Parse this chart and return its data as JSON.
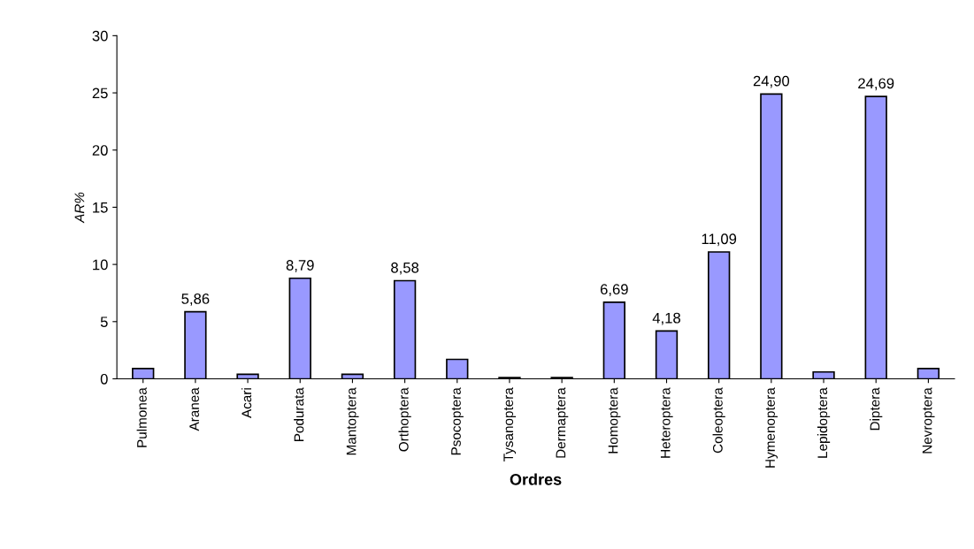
{
  "chart_data": {
    "type": "bar",
    "xlabel": "Ordres",
    "ylabel": "AR%",
    "categories": [
      "Pulmonea",
      "Aranea",
      "Acari",
      "Podurata",
      "Mantoptera",
      "Orthoptera",
      "Psocoptera",
      "Tysanoptera",
      "Dermaptera",
      "Homoptera",
      "Heteroptera",
      "Coleoptera",
      "Hymenoptera",
      "Lepidoptera",
      "Diptera",
      "Nevroptera"
    ],
    "values": [
      0.9,
      5.86,
      0.4,
      8.79,
      0.4,
      8.58,
      1.7,
      0.1,
      0.1,
      6.69,
      4.18,
      11.09,
      24.9,
      0.6,
      24.69,
      0.9
    ],
    "value_labels": [
      null,
      "5,86",
      null,
      "8,79",
      null,
      "8,58",
      null,
      null,
      null,
      "6,69",
      "4,18",
      "11,09",
      "24,90",
      null,
      "24,69",
      null
    ],
    "color": "#9999ff",
    "ylim": [
      0,
      30
    ],
    "yticks": [
      0,
      5,
      10,
      15,
      20,
      25,
      30
    ],
    "grid": false,
    "legend": false
  }
}
